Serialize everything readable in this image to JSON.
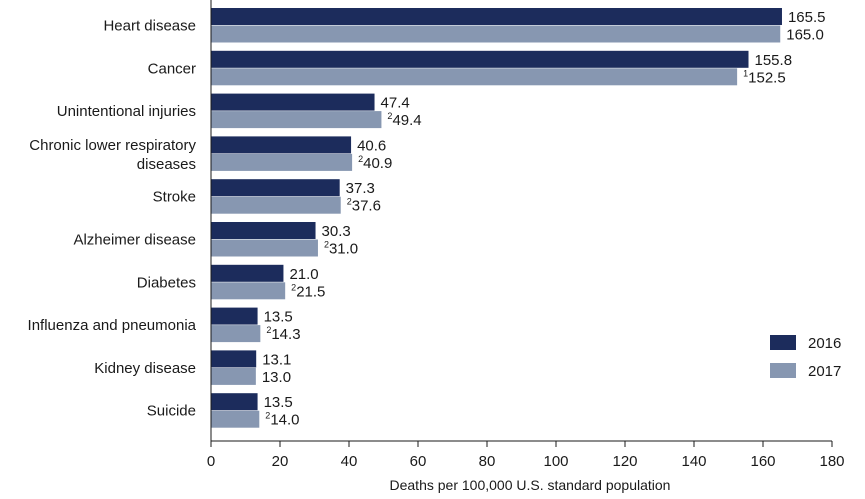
{
  "chart_data": {
    "type": "bar",
    "orientation": "horizontal",
    "categories": [
      "Heart disease",
      "Cancer",
      "Unintentional injuries",
      "Chronic lower respiratory diseases",
      "Stroke",
      "Alzheimer disease",
      "Diabetes",
      "Influenza and pneumonia",
      "Kidney disease",
      "Suicide"
    ],
    "category_lines": [
      [
        "Heart disease"
      ],
      [
        "Cancer"
      ],
      [
        "Unintentional injuries"
      ],
      [
        "Chronic lower respiratory",
        "diseases"
      ],
      [
        "Stroke"
      ],
      [
        "Alzheimer disease"
      ],
      [
        "Diabetes"
      ],
      [
        "Influenza and pneumonia"
      ],
      [
        "Kidney disease"
      ],
      [
        "Suicide"
      ]
    ],
    "series": [
      {
        "name": "2016",
        "color": "#1c2c5c",
        "values": [
          165.5,
          155.8,
          47.4,
          40.6,
          37.3,
          30.3,
          21.0,
          13.5,
          13.1,
          13.5
        ],
        "labels": [
          "165.5",
          "155.8",
          "47.4",
          "40.6",
          "37.3",
          "30.3",
          "21.0",
          "13.5",
          "13.1",
          "13.5"
        ],
        "notes": [
          "",
          "",
          "",
          "",
          "",
          "",
          "",
          "",
          "",
          ""
        ]
      },
      {
        "name": "2017",
        "color": "#8797b1",
        "values": [
          165.0,
          152.5,
          49.4,
          40.9,
          37.6,
          31.0,
          21.5,
          14.3,
          13.0,
          14.0
        ],
        "labels": [
          "165.0",
          "152.5",
          "49.4",
          "40.9",
          "37.6",
          "31.0",
          "21.5",
          "14.3",
          "13.0",
          "14.0"
        ],
        "notes": [
          "",
          "1",
          "2",
          "2",
          "2",
          "2",
          "2",
          "2",
          "",
          "2"
        ]
      }
    ],
    "xlabel": "Deaths per 100,000 U.S. standard population",
    "xlim": [
      0,
      180
    ],
    "xticks": [
      0,
      20,
      40,
      60,
      80,
      100,
      120,
      140,
      160,
      180
    ],
    "grid": false,
    "legend_position": "bottom-right"
  }
}
